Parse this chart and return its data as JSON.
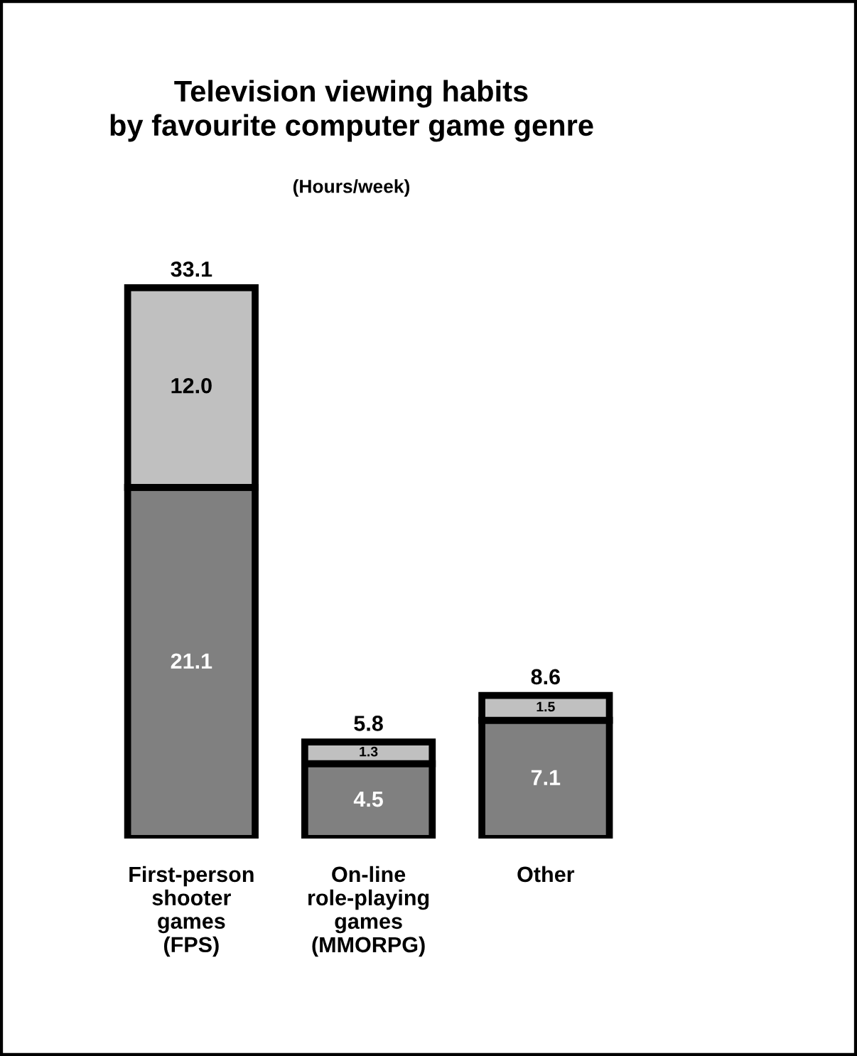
{
  "chart_data": {
    "type": "bar",
    "title": "Television viewing habits\nby favourite computer game genre",
    "subtitle": "(Hours/week)",
    "categories": [
      "First-person\nshooter\ngames\n(FPS)",
      "On-line\nrole-playing\ngames\n(MMORPG)",
      "Other"
    ],
    "stacked": true,
    "legend": false,
    "grid": false,
    "series": [
      {
        "color": "#808080",
        "values": [
          21.1,
          4.5,
          7.1
        ],
        "value_labels": [
          "21.1",
          "4.5",
          "7.1"
        ]
      },
      {
        "color": "#c0c0c0",
        "values": [
          12.0,
          1.3,
          1.5
        ],
        "value_labels": [
          "12.0",
          "1.3",
          "1.5"
        ]
      }
    ],
    "totals": [
      "33.1",
      "5.8",
      "8.6"
    ]
  }
}
